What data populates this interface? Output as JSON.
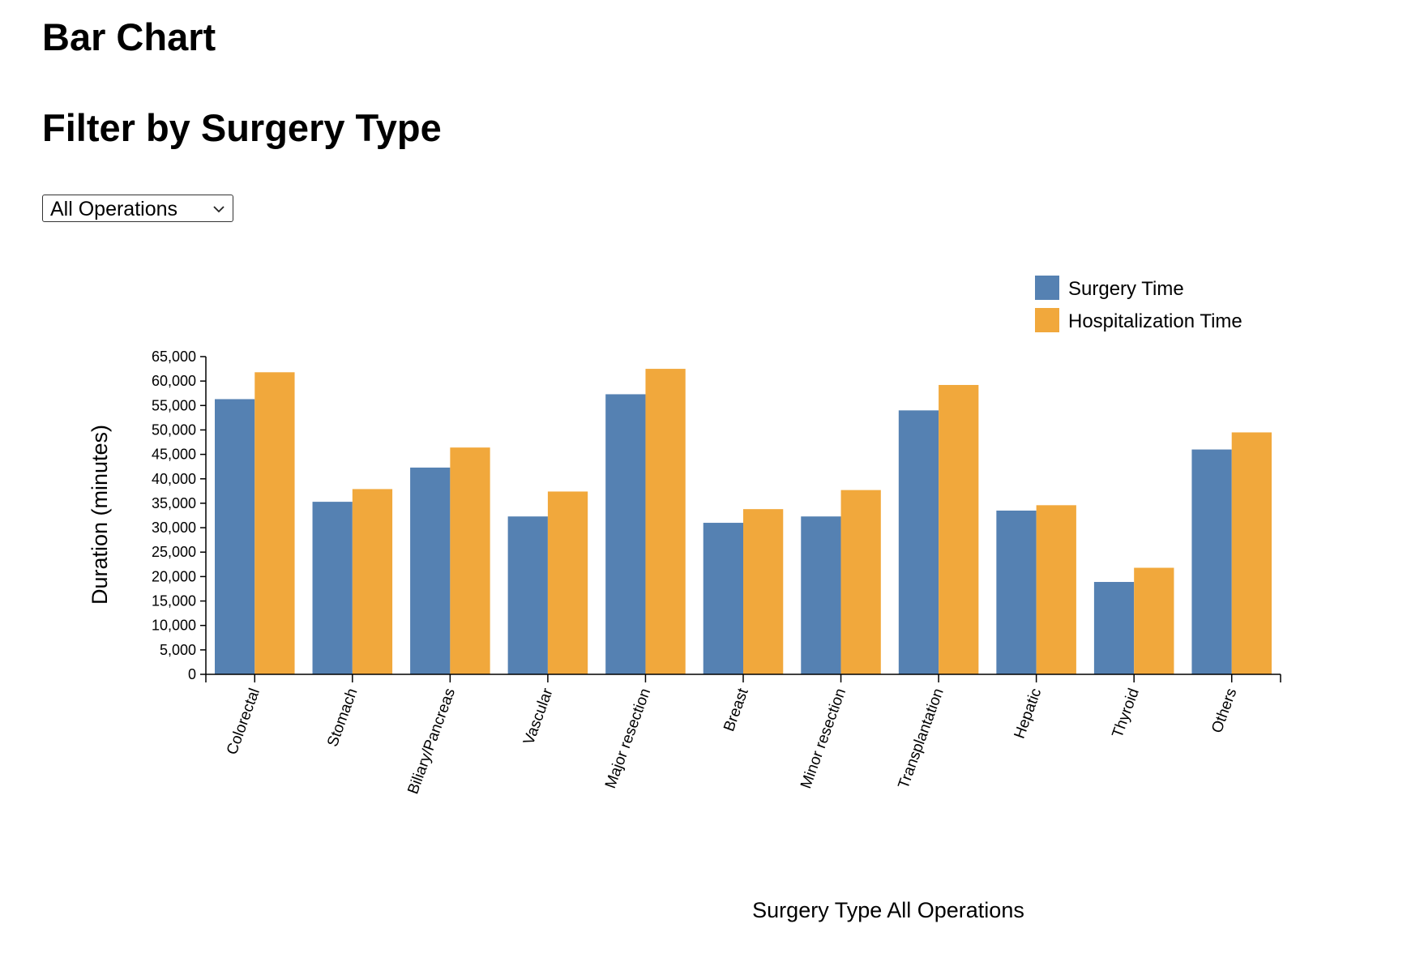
{
  "page": {
    "title": "Bar Chart",
    "filter_title": "Filter by Surgery Type"
  },
  "filter": {
    "selected": "All Operations",
    "chevron_icon": "chevron-down-icon"
  },
  "colors": {
    "surgery": "#5581b2",
    "hospitalization": "#f1a83c"
  },
  "chart_data": {
    "type": "bar",
    "title": "",
    "xlabel": "Surgery Type All Operations",
    "ylabel": "Duration (minutes)",
    "ylim": [
      0,
      65000
    ],
    "yticks": [
      0,
      5000,
      10000,
      15000,
      20000,
      25000,
      30000,
      35000,
      40000,
      45000,
      50000,
      55000,
      60000,
      65000
    ],
    "ytick_labels": [
      "0",
      "5,000",
      "10,000",
      "15,000",
      "20,000",
      "25,000",
      "30,000",
      "35,000",
      "40,000",
      "45,000",
      "50,000",
      "55,000",
      "60,000",
      "65,000"
    ],
    "legend_position": "top-right",
    "grid": false,
    "categories": [
      "Colorectal",
      "Stomach",
      "Biliary/Pancreas",
      "Vascular",
      "Major resection",
      "Breast",
      "Minor resection",
      "Transplantation",
      "Hepatic",
      "Thyroid",
      "Others"
    ],
    "series": [
      {
        "name": "Surgery Time",
        "values": [
          56300,
          35300,
          42300,
          32300,
          57300,
          31000,
          32300,
          54000,
          33500,
          18900,
          46000
        ]
      },
      {
        "name": "Hospitalization Time",
        "values": [
          61800,
          37900,
          46400,
          37400,
          62500,
          33800,
          37700,
          59200,
          34600,
          21800,
          49500
        ]
      }
    ]
  }
}
